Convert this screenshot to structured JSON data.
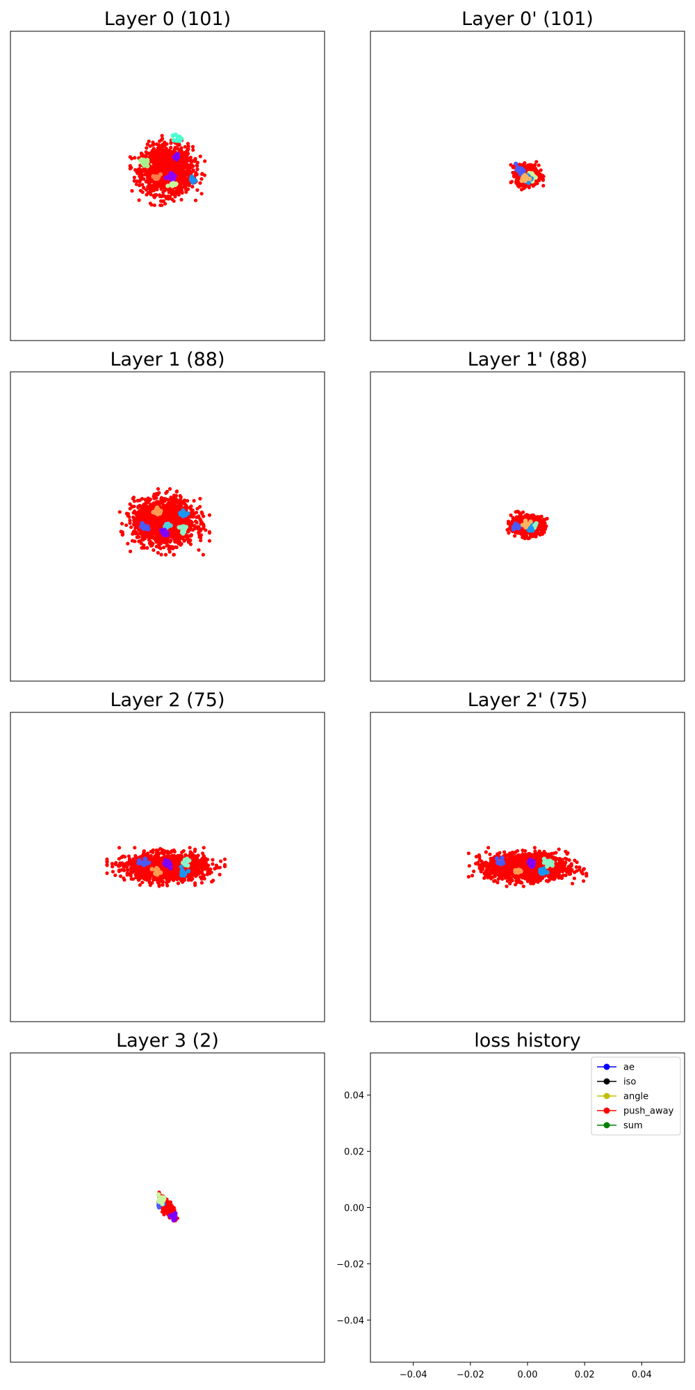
{
  "figure": {
    "background": "#ffffff",
    "cluster_colors": [
      "#7f00ff",
      "#4a5bfb",
      "#1996f3",
      "#4ed0e3",
      "#8cf5c5",
      "#c8f5a0",
      "#ffb360",
      "#ff6a3a"
    ],
    "noise_color": "#ff0000"
  },
  "chart_data": [
    {
      "type": "scatter",
      "title": "Layer 0 (101)",
      "xlim": [
        -1,
        1
      ],
      "ylim": [
        -1,
        1
      ],
      "axes_visible": false,
      "grid": false,
      "cloud": {
        "cx": 0.0,
        "cy": 0.1,
        "rx": 0.19,
        "ry": 0.18,
        "n": 1400,
        "color": "#ff0000"
      },
      "clusters": [
        {
          "x": 0.06,
          "y": 0.19,
          "color": "#7f00ff"
        },
        {
          "x": 0.07,
          "y": 0.31,
          "color": "#4affd0"
        },
        {
          "x": -0.15,
          "y": 0.15,
          "color": "#a8f08a"
        },
        {
          "x": -0.07,
          "y": 0.06,
          "color": "#ff7d4a"
        },
        {
          "x": 0.16,
          "y": 0.04,
          "color": "#1c8ef0"
        },
        {
          "x": 0.02,
          "y": 0.07,
          "color": "#8f00ff"
        },
        {
          "x": 0.03,
          "y": 0.0,
          "color": "#c8f5a0"
        }
      ]
    },
    {
      "type": "scatter",
      "title": "Layer 0' (101)",
      "xlim": [
        -1,
        1
      ],
      "ylim": [
        -1,
        1
      ],
      "axes_visible": false,
      "grid": false,
      "cloud": {
        "cx": 0.0,
        "cy": 0.07,
        "rx": 0.085,
        "ry": 0.075,
        "n": 600,
        "color": "#ff0000"
      },
      "clusters": [
        {
          "x": -0.05,
          "y": 0.1,
          "color": "#4a5bfb"
        },
        {
          "x": 0.03,
          "y": 0.06,
          "color": "#c8f5a0"
        },
        {
          "x": 0.01,
          "y": 0.04,
          "color": "#1996f3"
        },
        {
          "x": -0.02,
          "y": 0.05,
          "color": "#ffb360"
        }
      ]
    },
    {
      "type": "scatter",
      "title": "Layer 1 (88)",
      "xlim": [
        -1,
        1
      ],
      "ylim": [
        -1,
        1
      ],
      "axes_visible": false,
      "grid": false,
      "cloud": {
        "cx": -0.02,
        "cy": 0.03,
        "rx": 0.23,
        "ry": 0.17,
        "n": 1500,
        "color": "#ff0000"
      },
      "clusters": [
        {
          "x": -0.15,
          "y": 0.0,
          "color": "#4a5bfb"
        },
        {
          "x": -0.06,
          "y": 0.1,
          "color": "#ff9a50"
        },
        {
          "x": 0.1,
          "y": 0.08,
          "color": "#1996f3"
        },
        {
          "x": 0.1,
          "y": -0.02,
          "color": "#8cf5c5"
        },
        {
          "x": 0.0,
          "y": 0.0,
          "color": "#4ed0e3"
        },
        {
          "x": -0.02,
          "y": -0.04,
          "color": "#7f00ff"
        }
      ]
    },
    {
      "type": "scatter",
      "title": "Layer 1' (88)",
      "xlim": [
        -1,
        1
      ],
      "ylim": [
        -1,
        1
      ],
      "axes_visible": false,
      "grid": false,
      "cloud": {
        "cx": 0.0,
        "cy": 0.01,
        "rx": 0.12,
        "ry": 0.07,
        "n": 700,
        "color": "#ff0000"
      },
      "clusters": [
        {
          "x": -0.07,
          "y": 0.0,
          "color": "#4a5bfb"
        },
        {
          "x": 0.04,
          "y": 0.0,
          "color": "#8cf5c5"
        },
        {
          "x": 0.02,
          "y": -0.01,
          "color": "#1996f3"
        },
        {
          "x": -0.01,
          "y": 0.01,
          "color": "#ffb360"
        }
      ]
    },
    {
      "type": "scatter",
      "title": "Layer 2 (75)",
      "xlim": [
        -1,
        1
      ],
      "ylim": [
        -1,
        1
      ],
      "axes_visible": false,
      "grid": false,
      "cloud": {
        "cx": -0.01,
        "cy": 0.0,
        "rx": 0.3,
        "ry": 0.1,
        "n": 1500,
        "color": "#ff0000"
      },
      "clusters": [
        {
          "x": -0.15,
          "y": 0.03,
          "color": "#4a5bfb"
        },
        {
          "x": 0.12,
          "y": 0.03,
          "color": "#8cf5c5"
        },
        {
          "x": 0.1,
          "y": -0.03,
          "color": "#1996f3"
        },
        {
          "x": -0.07,
          "y": -0.03,
          "color": "#ff9a50"
        },
        {
          "x": 0.0,
          "y": 0.02,
          "color": "#7f00ff"
        }
      ]
    },
    {
      "type": "scatter",
      "title": "Layer 2' (75)",
      "xlim": [
        -1,
        1
      ],
      "ylim": [
        -1,
        1
      ],
      "axes_visible": false,
      "grid": false,
      "cloud": {
        "cx": 0.0,
        "cy": 0.0,
        "rx": 0.3,
        "ry": 0.1,
        "n": 1500,
        "color": "#ff0000"
      },
      "clusters": [
        {
          "x": -0.17,
          "y": 0.03,
          "color": "#4a5bfb"
        },
        {
          "x": 0.13,
          "y": 0.03,
          "color": "#8cf5c5"
        },
        {
          "x": 0.1,
          "y": -0.03,
          "color": "#1996f3"
        },
        {
          "x": -0.06,
          "y": -0.02,
          "color": "#ff9a50"
        },
        {
          "x": 0.02,
          "y": 0.02,
          "color": "#7f00ff"
        }
      ]
    },
    {
      "type": "scatter",
      "title": "Layer 3 (2)",
      "xlim": [
        -1,
        1
      ],
      "ylim": [
        -1,
        1
      ],
      "axes_visible": false,
      "grid": false,
      "cloud": {
        "cx": 0.0,
        "cy": 0.0,
        "rx": 0.09,
        "ry": 0.035,
        "angle": -55,
        "n": 260,
        "color": "#ff0000"
      },
      "clusters": [
        {
          "x": -0.04,
          "y": 0.03,
          "color": "#4a5bfb"
        },
        {
          "x": -0.04,
          "y": 0.06,
          "color": "#c8f5a0"
        },
        {
          "x": 0.04,
          "y": -0.06,
          "color": "#7f00ff"
        }
      ]
    },
    {
      "type": "line",
      "title": "loss history",
      "xlim": [
        -0.055,
        0.055
      ],
      "ylim": [
        -0.055,
        0.055
      ],
      "xticks": [
        "−0.04",
        "−0.02",
        "0.00",
        "0.02",
        "0.04"
      ],
      "xtick_values": [
        -0.04,
        -0.02,
        0.0,
        0.02,
        0.04
      ],
      "yticks": [
        "0.04",
        "0.02",
        "0.00",
        "−0.02",
        "−0.04"
      ],
      "ytick_values": [
        0.04,
        0.02,
        0.0,
        -0.02,
        -0.04
      ],
      "grid": false,
      "legend_position": "top-right",
      "series": [
        {
          "name": "ae",
          "color": "#0000ff",
          "values": []
        },
        {
          "name": "iso",
          "color": "#000000",
          "values": []
        },
        {
          "name": "angle",
          "color": "#bfbf00",
          "values": []
        },
        {
          "name": "push_away",
          "color": "#ff0000",
          "values": []
        },
        {
          "name": "sum",
          "color": "#008000",
          "values": []
        }
      ]
    }
  ]
}
